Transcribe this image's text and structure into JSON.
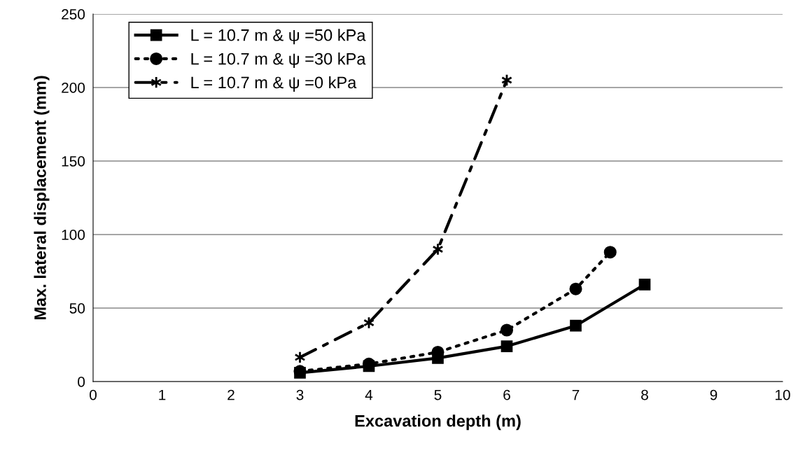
{
  "chart_data": {
    "type": "line",
    "xlabel": "Excavation depth (m)",
    "ylabel": "Max. lateral displacement (mm)",
    "xlim": [
      0,
      10
    ],
    "xticks": [
      0,
      1,
      2,
      3,
      4,
      5,
      6,
      7,
      8,
      9,
      10
    ],
    "ylim": [
      0,
      250
    ],
    "yticks": [
      0,
      50,
      100,
      150,
      200,
      250
    ],
    "grid": "y",
    "legend": "top left",
    "series": [
      {
        "name": "L = 10.7 m & ψ =50 kPa",
        "color": "#000000",
        "marker": "square",
        "line_style": "solid",
        "x": [
          3,
          4,
          5,
          6,
          7,
          8
        ],
        "values": [
          6,
          10.5,
          16,
          24,
          38,
          66
        ]
      },
      {
        "name": "L = 10.7 m & ψ =30 kPa",
        "color": "#000000",
        "marker": "circle",
        "line_style": "dotted",
        "x": [
          3,
          4,
          5,
          6,
          7,
          7.5
        ],
        "values": [
          7,
          12,
          20,
          35,
          63,
          88
        ]
      },
      {
        "name": "L = 10.7 m & ψ =0 kPa",
        "color": "#000000",
        "marker": "cross",
        "line_style": "dashed",
        "x": [
          3,
          4,
          5,
          6
        ],
        "values": [
          16.5,
          40,
          90,
          205
        ]
      }
    ]
  }
}
